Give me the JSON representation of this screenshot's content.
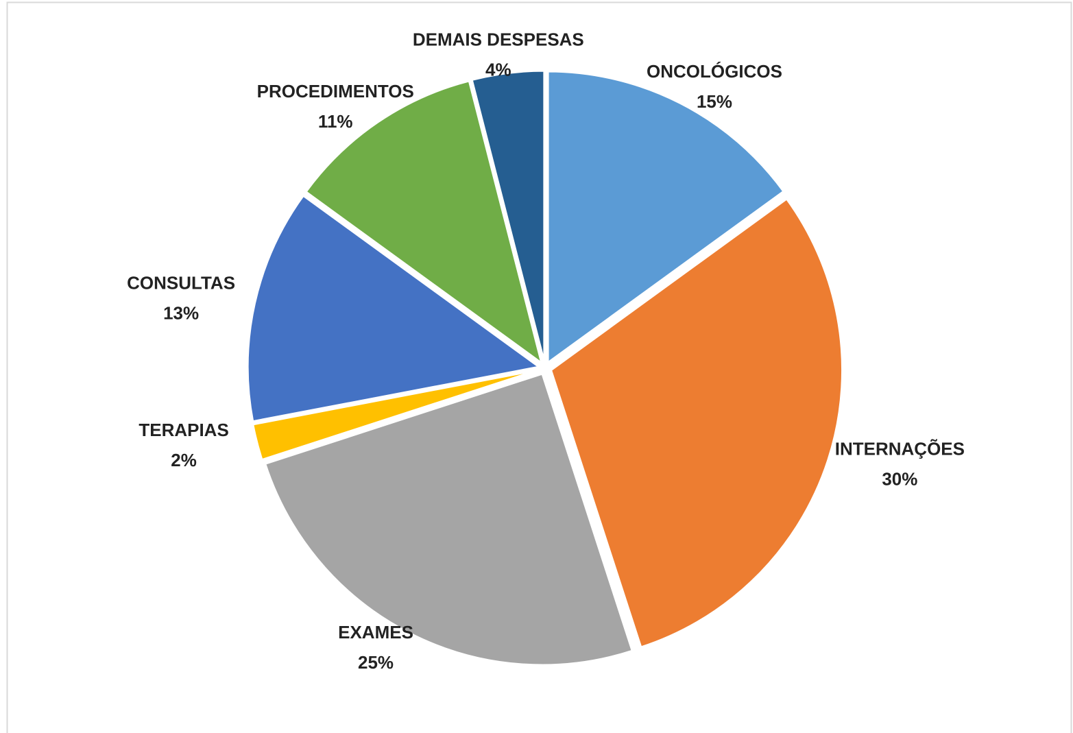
{
  "chart_data": {
    "type": "pie",
    "categories": [
      "ONCOLÓGICOS",
      "INTERNAÇÕES",
      "EXAMES",
      "TERAPIAS",
      "CONSULTAS",
      "PROCEDIMENTOS",
      "DEMAIS DESPESAS"
    ],
    "values": [
      15,
      30,
      25,
      2,
      13,
      11,
      4
    ],
    "value_labels": [
      "15%",
      "30%",
      "25%",
      "2%",
      "13%",
      "11%",
      "4%"
    ],
    "colors": [
      "#5b9bd5",
      "#ed7d31",
      "#a5a5a5",
      "#ffc000",
      "#4472c4",
      "#70ad47",
      "#255e91"
    ]
  }
}
